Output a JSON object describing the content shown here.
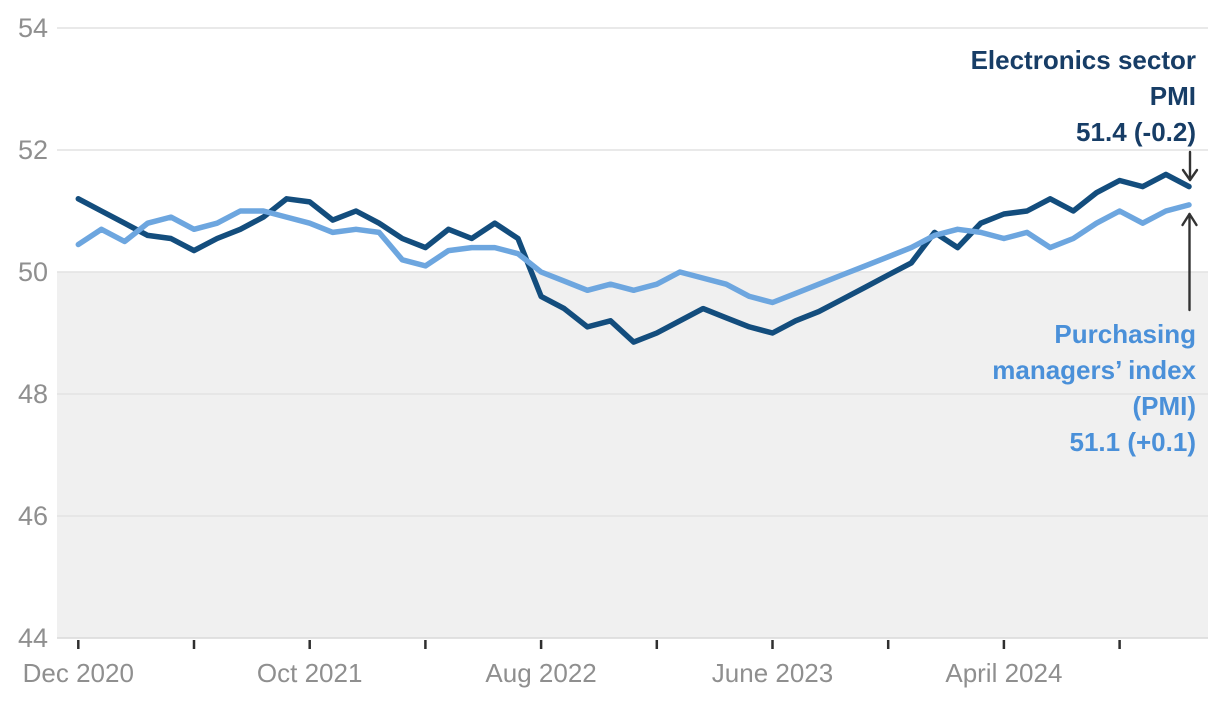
{
  "chart_data": {
    "type": "line",
    "title": "",
    "x_start": "Dec 2020",
    "x_end": "Dec 2024",
    "frequency": "monthly",
    "ylim": [
      44,
      54
    ],
    "y_ticks": [
      54,
      52,
      50,
      48,
      46,
      44
    ],
    "x_tick_months": [
      0,
      5,
      10,
      15,
      20,
      25,
      30,
      35,
      40,
      45
    ],
    "x_labels": [
      {
        "text": "Dec 2020",
        "month": 0
      },
      {
        "text": "Oct 2021",
        "month": 10
      },
      {
        "text": "Aug 2022",
        "month": 20
      },
      {
        "text": "June 2023",
        "month": 30
      },
      {
        "text": "April 2024",
        "month": 40
      }
    ],
    "shaded_band": {
      "from": 44,
      "to": 50
    },
    "grid": true,
    "series": [
      {
        "name": "Electronics sector PMI",
        "color": "#134d7d",
        "latest": "51.4",
        "change": "-0.2",
        "values": [
          51.2,
          51.0,
          50.8,
          50.6,
          50.55,
          50.35,
          50.55,
          50.7,
          50.9,
          51.2,
          51.15,
          50.85,
          51.0,
          50.8,
          50.55,
          50.4,
          50.7,
          50.55,
          50.8,
          50.55,
          49.6,
          49.4,
          49.1,
          49.2,
          48.85,
          49.0,
          49.2,
          49.4,
          49.25,
          49.1,
          49.0,
          49.2,
          49.35,
          49.55,
          49.75,
          49.95,
          50.15,
          50.65,
          50.4,
          50.8,
          50.95,
          51.0,
          51.2,
          51.0,
          51.3,
          51.5,
          51.4,
          51.6,
          51.4
        ]
      },
      {
        "name": "Purchasing managers’ index (PMI)",
        "color": "#6da6df",
        "latest": "51.1",
        "change": "+0.1",
        "values": [
          50.45,
          50.7,
          50.5,
          50.8,
          50.9,
          50.7,
          50.8,
          51.0,
          51.0,
          50.9,
          50.8,
          50.65,
          50.7,
          50.65,
          50.2,
          50.1,
          50.35,
          50.4,
          50.4,
          50.3,
          50.0,
          49.85,
          49.7,
          49.8,
          49.7,
          49.8,
          50.0,
          49.9,
          49.8,
          49.6,
          49.5,
          49.65,
          49.8,
          49.95,
          50.1,
          50.25,
          50.4,
          50.6,
          50.7,
          50.65,
          50.55,
          50.65,
          50.4,
          50.55,
          50.8,
          51.0,
          50.8,
          51.0,
          51.1
        ]
      }
    ],
    "colors": {
      "electronics_line": "#134d7d",
      "pmi_line": "#6da6df",
      "electronics_label": "#173d66",
      "pmi_label": "#4a90d9",
      "shaded_band": "#f0f0f0",
      "gridline": "#e2e2e2",
      "axis_text": "#8f8f8f",
      "tick": "#2f2f2f",
      "arrow": "#333333"
    }
  },
  "annotations": {
    "electronics": {
      "lines": [
        "Electronics sector",
        "PMI",
        "51.4 (-0.2)"
      ]
    },
    "pmi": {
      "lines": [
        "Purchasing",
        "managers’ index",
        "(PMI)",
        "51.1 (+0.1)"
      ]
    }
  }
}
